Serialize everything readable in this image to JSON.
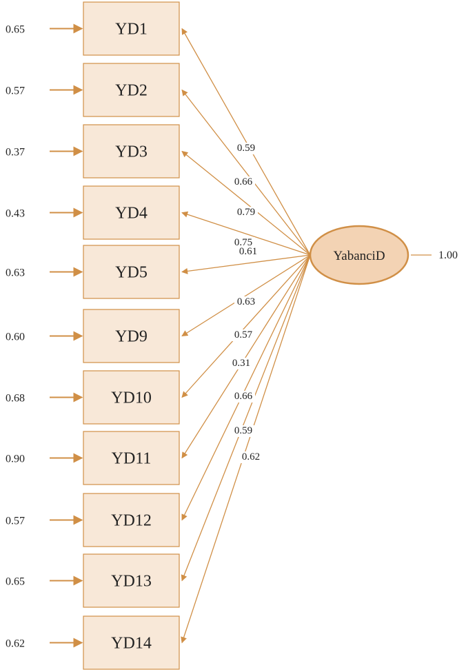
{
  "colors": {
    "line": "#D08F46",
    "box_fill": "#F8E8D8",
    "box_stroke": "#D08F46",
    "latent_fill": "#F3D3B4",
    "latent_stroke": "#D08F46",
    "text": "#222222"
  },
  "latent": {
    "label": "YabanciD",
    "variance": "1.00"
  },
  "indicators": [
    {
      "label": "YD1",
      "error": "0.65",
      "loading": "0.59"
    },
    {
      "label": "YD2",
      "error": "0.57",
      "loading": "0.66"
    },
    {
      "label": "YD3",
      "error": "0.37",
      "loading": "0.79"
    },
    {
      "label": "YD4",
      "error": "0.43",
      "loading": "0.75"
    },
    {
      "label": "YD5",
      "error": "0.63",
      "loading": "0.61"
    },
    {
      "label": "YD9",
      "error": "0.60",
      "loading": "0.63"
    },
    {
      "label": "YD10",
      "error": "0.68",
      "loading": "0.57"
    },
    {
      "label": "YD11",
      "error": "0.90",
      "loading": "0.31"
    },
    {
      "label": "YD12",
      "error": "0.57",
      "loading": "0.66"
    },
    {
      "label": "YD13",
      "error": "0.65",
      "loading": "0.59"
    },
    {
      "label": "YD14",
      "error": "0.62",
      "loading": "0.62"
    }
  ]
}
